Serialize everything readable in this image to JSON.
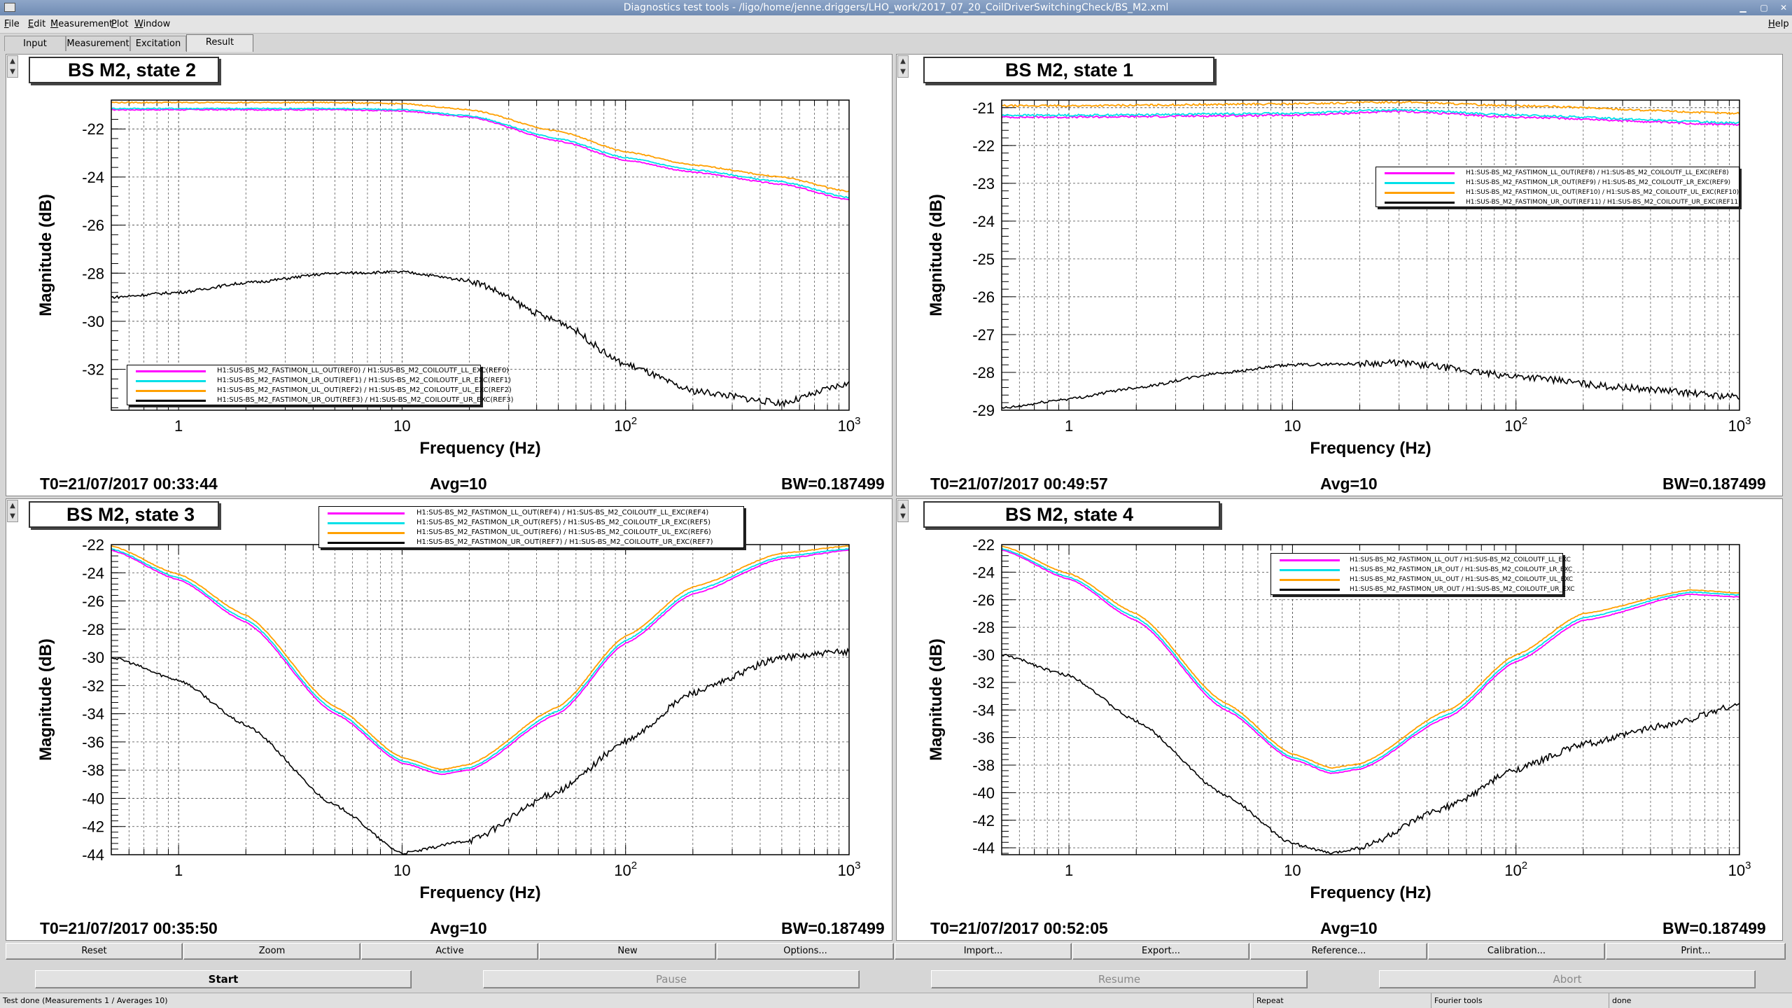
{
  "window": {
    "title": "Diagnostics test tools - /ligo/home/jenne.driggers/LHO_work/2017_07_20_CoilDriverSwitchingCheck/BS_M2.xml"
  },
  "menu": {
    "file": "File",
    "edit": "Edit",
    "measurement": "Measurement",
    "plot": "Plot",
    "window": "Window",
    "help": "Help"
  },
  "tabs": {
    "input": "Input",
    "measurement": "Measurement",
    "excitation": "Excitation",
    "result": "Result"
  },
  "colors": {
    "ll": "#ff00ff",
    "lr": "#00e0e8",
    "ul": "#ffa000",
    "ur": "#000000"
  },
  "panels": [
    {
      "title": "BS M2, state 2",
      "t0": "T0=21/07/2017 00:33:44",
      "avg": "Avg=10",
      "bw": "BW=0.187499",
      "legend": [
        "H1:SUS-BS_M2_FASTIMON_LL_OUT(REF0) / H1:SUS-BS_M2_COILOUTF_LL_EXC(REF0)",
        "H1:SUS-BS_M2_FASTIMON_LR_OUT(REF1) / H1:SUS-BS_M2_COILOUTF_LR_EXC(REF1)",
        "H1:SUS-BS_M2_FASTIMON_UL_OUT(REF2) / H1:SUS-BS_M2_COILOUTF_UL_EXC(REF2)",
        "H1:SUS-BS_M2_FASTIMON_UR_OUT(REF3) / H1:SUS-BS_M2_COILOUTF_UR_EXC(REF3)"
      ]
    },
    {
      "title": "BS M2, state 1",
      "t0": "T0=21/07/2017 00:49:57",
      "avg": "Avg=10",
      "bw": "BW=0.187499",
      "legend": [
        "H1:SUS-BS_M2_FASTIMON_LL_OUT(REF8) / H1:SUS-BS_M2_COILOUTF_LL_EXC(REF8)",
        "H1:SUS-BS_M2_FASTIMON_LR_OUT(REF9) / H1:SUS-BS_M2_COILOUTF_LR_EXC(REF9)",
        "H1:SUS-BS_M2_FASTIMON_UL_OUT(REF10) / H1:SUS-BS_M2_COILOUTF_UL_EXC(REF10)",
        "H1:SUS-BS_M2_FASTIMON_UR_OUT(REF11) / H1:SUS-BS_M2_COILOUTF_UR_EXC(REF11)"
      ]
    },
    {
      "title": "BS M2, state 3",
      "t0": "T0=21/07/2017 00:35:50",
      "avg": "Avg=10",
      "bw": "BW=0.187499",
      "legend": [
        "H1:SUS-BS_M2_FASTIMON_LL_OUT(REF4) / H1:SUS-BS_M2_COILOUTF_LL_EXC(REF4)",
        "H1:SUS-BS_M2_FASTIMON_LR_OUT(REF5) / H1:SUS-BS_M2_COILOUTF_LR_EXC(REF5)",
        "H1:SUS-BS_M2_FASTIMON_UL_OUT(REF6) / H1:SUS-BS_M2_COILOUTF_UL_EXC(REF6)",
        "H1:SUS-BS_M2_FASTIMON_UR_OUT(REF7) / H1:SUS-BS_M2_COILOUTF_UR_EXC(REF7)"
      ]
    },
    {
      "title": "BS M2, state 4",
      "t0": "T0=21/07/2017 00:52:05",
      "avg": "Avg=10",
      "bw": "BW=0.187499",
      "legend": [
        "H1:SUS-BS_M2_FASTIMON_LL_OUT / H1:SUS-BS_M2_COILOUTF_LL_EXC",
        "H1:SUS-BS_M2_FASTIMON_LR_OUT / H1:SUS-BS_M2_COILOUTF_LR_EXC",
        "H1:SUS-BS_M2_FASTIMON_UL_OUT / H1:SUS-BS_M2_COILOUTF_UL_EXC",
        "H1:SUS-BS_M2_FASTIMON_UR_OUT / H1:SUS-BS_M2_COILOUTF_UR_EXC"
      ]
    }
  ],
  "chart_data": [
    {
      "type": "line",
      "title": "BS M2, state 2",
      "xlabel": "Frequency (Hz)",
      "ylabel": "Magnitude (dB)",
      "xscale": "log",
      "xlim": [
        0.5,
        1000
      ],
      "ylim": [
        -33.7,
        -20.8
      ],
      "xticks": [
        1,
        10,
        100,
        1000
      ],
      "xtick_labels": [
        "1",
        "10",
        "10^2",
        "10^3"
      ],
      "yticks": [
        -22,
        -24,
        -26,
        -28,
        -30,
        -32
      ],
      "grid": true,
      "legend_position": "bottom-left",
      "series": [
        {
          "name": "H1:SUS-BS_M2_FASTIMON_LL_OUT(REF0) / H1:SUS-BS_M2_COILOUTF_LL_EXC(REF0)",
          "x": [
            0.5,
            1,
            2,
            5,
            10,
            20,
            50,
            100,
            200,
            500,
            1000
          ],
          "y": [
            -21.2,
            -21.2,
            -21.2,
            -21.2,
            -21.25,
            -21.5,
            -22.5,
            -23.3,
            -23.8,
            -24.3,
            -24.95
          ]
        },
        {
          "name": "H1:SUS-BS_M2_FASTIMON_LR_OUT(REF1) / H1:SUS-BS_M2_COILOUTF_LR_EXC(REF1)",
          "x": [
            0.5,
            1,
            2,
            5,
            10,
            20,
            50,
            100,
            200,
            500,
            1000
          ],
          "y": [
            -21.15,
            -21.15,
            -21.15,
            -21.15,
            -21.2,
            -21.45,
            -22.4,
            -23.2,
            -23.7,
            -24.2,
            -24.85
          ]
        },
        {
          "name": "H1:SUS-BS_M2_FASTIMON_UL_OUT(REF2) / H1:SUS-BS_M2_COILOUTF_UL_EXC(REF2)",
          "x": [
            0.5,
            1,
            2,
            5,
            10,
            20,
            50,
            100,
            200,
            500,
            1000
          ],
          "y": [
            -20.9,
            -20.9,
            -20.9,
            -20.9,
            -20.95,
            -21.2,
            -22.1,
            -22.95,
            -23.5,
            -24.0,
            -24.6
          ]
        },
        {
          "name": "H1:SUS-BS_M2_FASTIMON_UR_OUT(REF3) / H1:SUS-BS_M2_COILOUTF_UR_EXC(REF3)",
          "x": [
            0.5,
            1,
            2,
            5,
            10,
            20,
            50,
            100,
            200,
            500,
            1000
          ],
          "y": [
            -29.0,
            -28.8,
            -28.4,
            -28.0,
            -27.95,
            -28.3,
            -30.0,
            -31.8,
            -32.9,
            -33.4,
            -32.6
          ]
        }
      ]
    },
    {
      "type": "line",
      "title": "BS M2, state 1",
      "xlabel": "Frequency (Hz)",
      "ylabel": "Magnitude (dB)",
      "xscale": "log",
      "xlim": [
        0.5,
        1000
      ],
      "ylim": [
        -29.0,
        -20.8
      ],
      "xticks": [
        1,
        10,
        100,
        1000
      ],
      "xtick_labels": [
        "1",
        "10",
        "10^2",
        "10^3"
      ],
      "yticks": [
        -21,
        -22,
        -23,
        -24,
        -25,
        -26,
        -27,
        -28,
        -29
      ],
      "grid": true,
      "legend_position": "top-right",
      "series": [
        {
          "name": "H1:SUS-BS_M2_FASTIMON_LL_OUT(REF8) / H1:SUS-BS_M2_COILOUTF_LL_EXC(REF8)",
          "x": [
            0.5,
            1,
            10,
            30,
            100,
            1000
          ],
          "y": [
            -21.25,
            -21.25,
            -21.2,
            -21.1,
            -21.25,
            -21.45
          ]
        },
        {
          "name": "H1:SUS-BS_M2_FASTIMON_LR_OUT(REF9) / H1:SUS-BS_M2_COILOUTF_LR_EXC(REF9)",
          "x": [
            0.5,
            1,
            10,
            30,
            100,
            1000
          ],
          "y": [
            -21.2,
            -21.2,
            -21.15,
            -21.05,
            -21.2,
            -21.4
          ]
        },
        {
          "name": "H1:SUS-BS_M2_FASTIMON_UL_OUT(REF10) / H1:SUS-BS_M2_COILOUTF_UL_EXC(REF10)",
          "x": [
            0.5,
            1,
            10,
            30,
            100,
            1000
          ],
          "y": [
            -20.95,
            -20.95,
            -20.9,
            -20.85,
            -20.95,
            -21.15
          ]
        },
        {
          "name": "H1:SUS-BS_M2_FASTIMON_UR_OUT(REF11) / H1:SUS-BS_M2_COILOUTF_UR_EXC(REF11)",
          "x": [
            0.5,
            1,
            2,
            5,
            10,
            30,
            100,
            300,
            1000
          ],
          "y": [
            -28.95,
            -28.7,
            -28.4,
            -28.0,
            -27.8,
            -27.75,
            -28.1,
            -28.4,
            -28.65
          ]
        }
      ]
    },
    {
      "type": "line",
      "title": "BS M2, state 3",
      "xlabel": "Frequency (Hz)",
      "ylabel": "Magnitude (dB)",
      "xscale": "log",
      "xlim": [
        0.5,
        1000
      ],
      "ylim": [
        -44.0,
        -22.0
      ],
      "xticks": [
        1,
        10,
        100,
        1000
      ],
      "xtick_labels": [
        "1",
        "10",
        "10^2",
        "10^3"
      ],
      "yticks": [
        -22,
        -24,
        -26,
        -28,
        -30,
        -32,
        -34,
        -36,
        -38,
        -40,
        -42,
        -44
      ],
      "grid": true,
      "legend_position": "top-center",
      "series": [
        {
          "name": "H1:SUS-BS_M2_FASTIMON_LL_OUT(REF4) / H1:SUS-BS_M2_COILOUTF_LL_EXC(REF4)",
          "x": [
            0.5,
            1,
            2,
            5,
            10,
            15,
            20,
            50,
            100,
            200,
            500,
            1000
          ],
          "y": [
            -22.4,
            -24.5,
            -27.5,
            -34.0,
            -37.5,
            -38.3,
            -38.0,
            -34.0,
            -29.0,
            -25.5,
            -23.0,
            -22.4
          ]
        },
        {
          "name": "H1:SUS-BS_M2_FASTIMON_LR_OUT(REF5) / H1:SUS-BS_M2_COILOUTF_LR_EXC(REF5)",
          "x": [
            0.5,
            1,
            2,
            5,
            10,
            15,
            20,
            50,
            100,
            200,
            500,
            1000
          ],
          "y": [
            -22.3,
            -24.35,
            -27.3,
            -33.8,
            -37.35,
            -38.15,
            -37.85,
            -33.8,
            -28.8,
            -25.3,
            -22.85,
            -22.3
          ]
        },
        {
          "name": "H1:SUS-BS_M2_FASTIMON_UL_OUT(REF6) / H1:SUS-BS_M2_COILOUTF_UL_EXC(REF6)",
          "x": [
            0.5,
            1,
            2,
            5,
            10,
            15,
            20,
            50,
            100,
            200,
            500,
            1000
          ],
          "y": [
            -22.1,
            -24.1,
            -27.0,
            -33.5,
            -37.1,
            -37.95,
            -37.6,
            -33.5,
            -28.5,
            -25.0,
            -22.6,
            -22.1
          ]
        },
        {
          "name": "H1:SUS-BS_M2_FASTIMON_UR_OUT(REF7) / H1:SUS-BS_M2_COILOUTF_UR_EXC(REF7)",
          "x": [
            0.5,
            1,
            2,
            5,
            10,
            20,
            50,
            100,
            200,
            500,
            1000
          ],
          "y": [
            -30.0,
            -31.6,
            -34.8,
            -40.5,
            -43.9,
            -43.0,
            -39.5,
            -36.0,
            -32.5,
            -30.0,
            -29.6
          ]
        }
      ]
    },
    {
      "type": "line",
      "title": "BS M2, state 4",
      "xlabel": "Frequency (Hz)",
      "ylabel": "Magnitude (dB)",
      "xscale": "log",
      "xlim": [
        0.5,
        1000
      ],
      "ylim": [
        -44.5,
        -22.0
      ],
      "xticks": [
        1,
        10,
        100,
        1000
      ],
      "xtick_labels": [
        "1",
        "10",
        "10^2",
        "10^3"
      ],
      "yticks": [
        -22,
        -24,
        -26,
        -28,
        -30,
        -32,
        -34,
        -36,
        -38,
        -40,
        -42,
        -44
      ],
      "grid": true,
      "legend_position": "top-right",
      "series": [
        {
          "name": "H1:SUS-BS_M2_FASTIMON_LL_OUT / H1:SUS-BS_M2_COILOUTF_LL_EXC",
          "x": [
            0.5,
            1,
            2,
            5,
            10,
            15,
            20,
            50,
            100,
            200,
            600,
            1000
          ],
          "y": [
            -22.4,
            -24.5,
            -27.5,
            -34.0,
            -37.6,
            -38.6,
            -38.3,
            -34.5,
            -30.5,
            -27.5,
            -25.6,
            -25.8
          ]
        },
        {
          "name": "H1:SUS-BS_M2_FASTIMON_LR_OUT / H1:SUS-BS_M2_COILOUTF_LR_EXC",
          "x": [
            0.5,
            1,
            2,
            5,
            10,
            15,
            20,
            50,
            100,
            200,
            600,
            1000
          ],
          "y": [
            -22.3,
            -24.35,
            -27.3,
            -33.8,
            -37.45,
            -38.45,
            -38.15,
            -34.3,
            -30.3,
            -27.3,
            -25.45,
            -25.65
          ]
        },
        {
          "name": "H1:SUS-BS_M2_FASTIMON_UL_OUT / H1:SUS-BS_M2_COILOUTF_UL_EXC",
          "x": [
            0.5,
            1,
            2,
            5,
            10,
            15,
            20,
            50,
            100,
            200,
            600,
            1000
          ],
          "y": [
            -22.1,
            -24.1,
            -27.0,
            -33.5,
            -37.2,
            -38.2,
            -37.9,
            -34.0,
            -30.0,
            -27.0,
            -25.3,
            -25.5
          ]
        },
        {
          "name": "H1:SUS-BS_M2_FASTIMON_UR_OUT / H1:SUS-BS_M2_COILOUTF_UR_EXC",
          "x": [
            0.5,
            1,
            2,
            5,
            10,
            15,
            20,
            50,
            100,
            200,
            500,
            1000
          ],
          "y": [
            -30.0,
            -31.5,
            -34.8,
            -40.2,
            -43.7,
            -44.4,
            -44.0,
            -41.0,
            -38.3,
            -36.5,
            -35.0,
            -33.6
          ]
        }
      ]
    }
  ],
  "buttons_row1": [
    "Reset",
    "Zoom",
    "Active",
    "New",
    "Options...",
    "Import...",
    "Export...",
    "Reference...",
    "Calibration...",
    "Print..."
  ],
  "buttons_row2": [
    "Start",
    "Pause",
    "Resume",
    "Abort"
  ],
  "status": {
    "left": "Test done (Measurements 1 / Averages 10)",
    "repeat": "Repeat",
    "tools": "Fourier tools",
    "state": "done"
  }
}
